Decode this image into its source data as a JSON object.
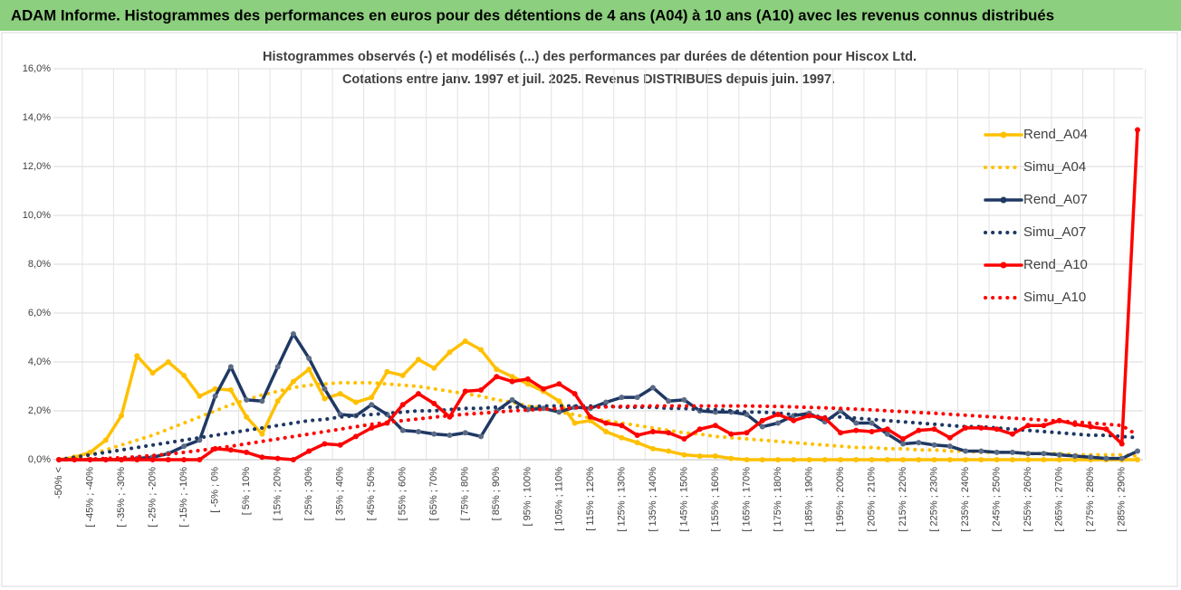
{
  "chart_data": {
    "type": "line",
    "title": "ADAM Informe. Histogrammes des performances en euros pour des détentions de 4 ans (A04) à 10 ans (A10) avec les revenus connus distribués",
    "subtitle": [
      "Histogrammes observés (-) et modélisés (...) des performances par durées de détention pour Hiscox Ltd.",
      "Cotations entre janv. 1997 et juil. 2025. Revenus DISTRIBUES depuis juin. 1997."
    ],
    "categories": [
      "-50% <",
      null,
      "[ -45% ; -40%",
      null,
      "[ -35% ; -30%",
      null,
      "[ -25% ; -20%",
      null,
      "[ -15% ; -10%",
      null,
      "[ -5% ; 0%",
      null,
      "[ 5% ; 10%",
      null,
      "[ 15% ; 20%",
      null,
      "[ 25% ; 30%",
      null,
      "[ 35% ; 40%",
      null,
      "[ 45% ; 50%",
      null,
      "[ 55% ; 60%",
      null,
      "[ 65% ; 70%",
      null,
      "[ 75% ; 80%",
      null,
      "[ 85% ; 90%",
      null,
      "[ 95% ; 100%",
      null,
      "[ 105% ; 110%",
      null,
      "[ 115% ; 120%",
      null,
      "[ 125% ; 130%",
      null,
      "[ 135% ; 140%",
      null,
      "[ 145% ; 150%",
      null,
      "[ 155% ; 160%",
      null,
      "[ 165% ; 170%",
      null,
      "[ 175% ; 180%",
      null,
      "[ 185% ; 190%",
      null,
      "[ 195% ; 200%",
      null,
      "[ 205% ; 210%",
      null,
      "[ 215% ; 220%",
      null,
      "[ 225% ; 230%",
      null,
      "[ 235% ; 240%",
      null,
      "[ 245% ; 250%",
      null,
      "[ 255% ; 260%",
      null,
      "[ 265% ; 270%",
      null,
      "[ 275% ; 280%",
      null,
      "[ 285% ; 290%",
      null
    ],
    "series": [
      {
        "name": "Rend_A04",
        "color": "#ffc000",
        "line_style": "solid",
        "markers": true,
        "values": [
          0,
          0.1,
          0.3,
          0.8,
          1.8,
          4.25,
          3.55,
          4.0,
          3.45,
          2.6,
          2.9,
          2.85,
          1.75,
          1.05,
          2.4,
          3.2,
          3.7,
          2.5,
          2.7,
          2.35,
          2.55,
          3.6,
          3.45,
          4.1,
          3.75,
          4.4,
          4.85,
          4.5,
          3.7,
          3.4,
          3.1,
          2.8,
          2.4,
          1.5,
          1.6,
          1.15,
          0.9,
          0.7,
          0.45,
          0.35,
          0.2,
          0.15,
          0.15,
          0.05,
          0,
          0,
          0,
          0,
          0,
          0,
          0,
          0,
          0,
          0,
          0,
          0,
          0,
          0,
          0,
          0,
          0,
          0,
          0,
          0,
          0,
          0,
          0,
          0,
          0,
          0
        ]
      },
      {
        "name": "Simu_A04",
        "color": "#ffc000",
        "line_style": "dotted",
        "markers": false,
        "values": [
          0,
          0.05,
          0.2,
          0.4,
          0.6,
          0.8,
          1.0,
          1.25,
          1.5,
          1.75,
          2.0,
          2.25,
          2.45,
          2.65,
          2.8,
          2.95,
          3.05,
          3.1,
          3.15,
          3.15,
          3.15,
          3.1,
          3.05,
          3.0,
          2.9,
          2.8,
          2.7,
          2.6,
          2.45,
          2.35,
          2.2,
          2.1,
          1.95,
          1.85,
          1.7,
          1.6,
          1.5,
          1.4,
          1.3,
          1.2,
          1.1,
          1.05,
          0.95,
          0.9,
          0.85,
          0.8,
          0.75,
          0.7,
          0.65,
          0.6,
          0.55,
          0.5,
          0.5,
          0.45,
          0.45,
          0.4,
          0.4,
          0.35,
          0.35,
          0.3,
          0.3,
          0.3,
          0.25,
          0.25,
          0.25,
          0.2,
          0.2,
          0.2,
          0.2,
          0.15
        ]
      },
      {
        "name": "Rend_A07",
        "color": "#1f3864",
        "line_style": "solid",
        "markers": true,
        "values": [
          0,
          0,
          0,
          0,
          0,
          0.05,
          0.1,
          0.25,
          0.55,
          0.8,
          2.6,
          3.8,
          2.45,
          2.4,
          3.8,
          5.15,
          4.15,
          2.9,
          1.85,
          1.8,
          2.25,
          1.85,
          1.2,
          1.15,
          1.05,
          1.0,
          1.1,
          0.95,
          2.0,
          2.45,
          2.05,
          2.1,
          1.95,
          2.15,
          2.1,
          2.35,
          2.55,
          2.55,
          2.95,
          2.4,
          2.45,
          2.0,
          1.95,
          1.95,
          1.85,
          1.35,
          1.5,
          1.8,
          1.9,
          1.55,
          2.0,
          1.5,
          1.5,
          1.05,
          0.65,
          0.7,
          0.6,
          0.55,
          0.35,
          0.35,
          0.3,
          0.3,
          0.25,
          0.25,
          0.2,
          0.15,
          0.1,
          0.05,
          0.05,
          0.35
        ]
      },
      {
        "name": "Simu_A07",
        "color": "#1f3864",
        "line_style": "dotted",
        "markers": false,
        "values": [
          0,
          0.1,
          0.2,
          0.3,
          0.4,
          0.5,
          0.6,
          0.7,
          0.8,
          0.9,
          1.0,
          1.1,
          1.2,
          1.3,
          1.4,
          1.5,
          1.6,
          1.65,
          1.75,
          1.8,
          1.85,
          1.9,
          1.95,
          2.0,
          2.0,
          2.05,
          2.1,
          2.1,
          2.15,
          2.15,
          2.15,
          2.2,
          2.2,
          2.2,
          2.2,
          2.2,
          2.15,
          2.15,
          2.15,
          2.1,
          2.1,
          2.05,
          2.05,
          2.0,
          1.95,
          1.95,
          1.9,
          1.85,
          1.8,
          1.75,
          1.75,
          1.7,
          1.65,
          1.6,
          1.55,
          1.5,
          1.45,
          1.4,
          1.35,
          1.35,
          1.3,
          1.25,
          1.2,
          1.15,
          1.1,
          1.05,
          1.0,
          1.0,
          0.95,
          0.9
        ]
      },
      {
        "name": "Rend_A10",
        "color": "#ff0000",
        "line_style": "solid",
        "markers": true,
        "values": [
          0,
          0,
          0,
          0,
          0,
          0,
          0,
          0,
          0,
          0,
          0.45,
          0.4,
          0.3,
          0.1,
          0.05,
          0,
          0.35,
          0.65,
          0.6,
          0.95,
          1.3,
          1.5,
          2.25,
          2.7,
          2.3,
          1.75,
          2.8,
          2.85,
          3.4,
          3.2,
          3.3,
          2.9,
          3.1,
          2.7,
          1.75,
          1.5,
          1.4,
          1.0,
          1.15,
          1.1,
          0.85,
          1.25,
          1.4,
          1.05,
          1.1,
          1.6,
          1.85,
          1.6,
          1.8,
          1.7,
          1.1,
          1.2,
          1.15,
          1.25,
          0.85,
          1.2,
          1.25,
          0.9,
          1.3,
          1.3,
          1.25,
          1.05,
          1.4,
          1.4,
          1.6,
          1.45,
          1.35,
          1.25,
          0.65,
          13.5
        ]
      },
      {
        "name": "Simu_A10",
        "color": "#ff0000",
        "line_style": "dotted",
        "markers": false,
        "values": [
          0,
          0,
          0.02,
          0.05,
          0.08,
          0.12,
          0.17,
          0.23,
          0.3,
          0.38,
          0.46,
          0.55,
          0.65,
          0.75,
          0.85,
          0.95,
          1.05,
          1.15,
          1.25,
          1.35,
          1.45,
          1.52,
          1.6,
          1.67,
          1.74,
          1.8,
          1.86,
          1.9,
          1.95,
          2.0,
          2.03,
          2.06,
          2.1,
          2.12,
          2.14,
          2.16,
          2.18,
          2.19,
          2.2,
          2.2,
          2.2,
          2.2,
          2.2,
          2.2,
          2.2,
          2.19,
          2.18,
          2.16,
          2.14,
          2.12,
          2.1,
          2.07,
          2.04,
          2.0,
          1.97,
          1.93,
          1.9,
          1.86,
          1.82,
          1.78,
          1.74,
          1.7,
          1.66,
          1.62,
          1.58,
          1.54,
          1.5,
          1.45,
          1.4,
          1.0
        ]
      }
    ],
    "ylim": [
      0,
      16
    ],
    "yticks": [
      {
        "value": 0,
        "label": "0,0%"
      },
      {
        "value": 2,
        "label": "2,0%"
      },
      {
        "value": 4,
        "label": "4,0%"
      },
      {
        "value": 6,
        "label": "6,0%"
      },
      {
        "value": 8,
        "label": "8,0%"
      },
      {
        "value": 10,
        "label": "10,0%"
      },
      {
        "value": 12,
        "label": "12,0%"
      },
      {
        "value": 14,
        "label": "14,0%"
      },
      {
        "value": 16,
        "label": "16,0%"
      }
    ],
    "grid": true,
    "legend": "right"
  }
}
